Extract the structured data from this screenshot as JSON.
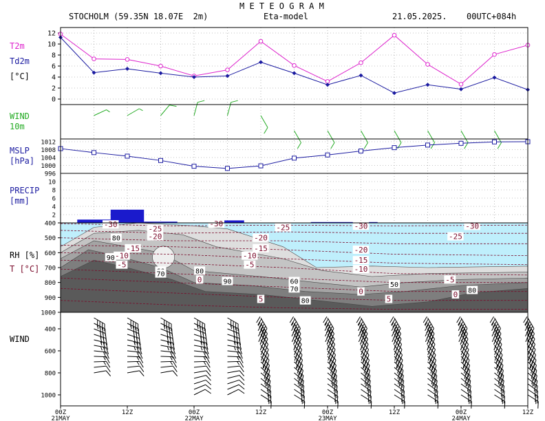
{
  "header": {
    "title": "M E T E O G R A M",
    "station": "STOCHOLM (59.35N 18.07E  2m)",
    "model": "Eta-model",
    "date": "21.05.2025.",
    "run": "00UTC+084h"
  },
  "panel_labels": {
    "t2m": "T2m",
    "td2m": "Td2m",
    "unit_c": "[°C]",
    "wind": "WIND",
    "wind_10m": "10m",
    "mslp": "MSLP",
    "mslp_unit": "[hPa]",
    "precip": "PRECIP",
    "precip_unit": "[mm]",
    "rh": "RH [%]",
    "t": "T [°C]",
    "wind_upper": "WIND"
  },
  "colors": {
    "t2m": "#dd22cc",
    "td2m": "#1a1aa0",
    "wind_sfc": "#22aa22",
    "mslp": "#1a1aa0",
    "precip": "#1a1acc",
    "rh_sky": "#bfeffc",
    "rh_contour_label": "#7a0a2a",
    "axis": "#000000"
  },
  "x_axis": {
    "tick_labels": [
      "00Z",
      "12Z",
      "00Z",
      "12Z",
      "00Z",
      "12Z",
      "00Z",
      "12Z"
    ],
    "day_labels": [
      "21MAY",
      "22MAY",
      "23MAY",
      "24MAY"
    ],
    "hours": [
      0,
      12,
      24,
      36,
      48,
      60,
      72,
      84
    ],
    "step_hours": 6,
    "range_hours": [
      0,
      84
    ]
  },
  "chart_data": [
    {
      "type": "line",
      "title": "T2m / Td2m",
      "ylabel": "[°C]",
      "yticks": [
        0,
        2,
        4,
        6,
        8,
        10,
        12
      ],
      "ylim": [
        -1,
        13
      ],
      "x": [
        0,
        6,
        12,
        18,
        24,
        30,
        36,
        42,
        48,
        54,
        60,
        66,
        72,
        78,
        84
      ],
      "series": [
        {
          "name": "T2m",
          "values": [
            11.8,
            7.3,
            7.2,
            6.0,
            4.2,
            5.3,
            10.5,
            6.1,
            3.2,
            6.6,
            11.6,
            6.3,
            2.7,
            8.1,
            9.8
          ]
        },
        {
          "name": "Td2m",
          "values": [
            11.2,
            4.8,
            5.5,
            4.7,
            4.0,
            4.2,
            6.7,
            4.7,
            2.6,
            4.3,
            1.1,
            2.6,
            1.8,
            3.9,
            1.7
          ]
        }
      ]
    },
    {
      "type": "wind_barbs",
      "title": "WIND 10m",
      "x": [
        6,
        12,
        18,
        24,
        30,
        36,
        42,
        48,
        54,
        60,
        66,
        72,
        78
      ],
      "direction_deg": [
        245,
        240,
        220,
        195,
        195,
        330,
        330,
        330,
        330,
        330,
        330,
        330,
        330
      ],
      "speed_kt": [
        5,
        5,
        10,
        10,
        10,
        10,
        10,
        10,
        10,
        10,
        10,
        10,
        10
      ]
    },
    {
      "type": "line",
      "title": "MSLP",
      "ylabel": "[hPa]",
      "yticks": [
        996,
        1000,
        1004,
        1008,
        1012
      ],
      "ylim": [
        996,
        1012
      ],
      "x": [
        0,
        6,
        12,
        18,
        24,
        30,
        36,
        42,
        48,
        54,
        60,
        66,
        72,
        78,
        84
      ],
      "series": [
        {
          "name": "MSLP",
          "values": [
            1008.5,
            1006.5,
            1004.7,
            1002.5,
            999.6,
            998.5,
            999.8,
            1003.7,
            1005.3,
            1007.3,
            1009.0,
            1010.3,
            1011.2,
            1011.9,
            1012.0
          ]
        }
      ]
    },
    {
      "type": "bar",
      "title": "PRECIP",
      "ylabel": "[mm]",
      "yticks": [
        2,
        4,
        6,
        8,
        10
      ],
      "ylim": [
        0,
        12
      ],
      "x_start": [
        3,
        9,
        15,
        27,
        45
      ],
      "x_end": [
        9,
        15,
        21,
        33,
        57
      ],
      "values": [
        0.8,
        3.2,
        0.3,
        0.6,
        0.2
      ]
    },
    {
      "type": "heatmap",
      "title": "RH / T cross-section",
      "ylabel": "pressure [hPa]",
      "yticks": [
        400,
        500,
        600,
        700,
        800,
        900,
        1000
      ],
      "ylim": [
        1000,
        400
      ],
      "rh_levels": [
        50,
        60,
        70,
        80,
        90
      ],
      "temperature_labels": [
        {
          "x": 9,
          "p": 410,
          "v": "-30"
        },
        {
          "x": 28,
          "p": 405,
          "v": "-30"
        },
        {
          "x": 54,
          "p": 420,
          "v": "-30"
        },
        {
          "x": 74,
          "p": 420,
          "v": "-30"
        },
        {
          "x": 40,
          "p": 430,
          "v": "-25"
        },
        {
          "x": 17,
          "p": 440,
          "v": "-25"
        },
        {
          "x": 71,
          "p": 490,
          "v": "-25"
        },
        {
          "x": 17,
          "p": 490,
          "v": "-20"
        },
        {
          "x": 36,
          "p": 500,
          "v": "-20"
        },
        {
          "x": 54,
          "p": 580,
          "v": "-20"
        },
        {
          "x": 13,
          "p": 570,
          "v": "-15"
        },
        {
          "x": 36,
          "p": 570,
          "v": "-15"
        },
        {
          "x": 54,
          "p": 650,
          "v": "-15"
        },
        {
          "x": 11,
          "p": 620,
          "v": "-10"
        },
        {
          "x": 34,
          "p": 620,
          "v": "-10"
        },
        {
          "x": 54,
          "p": 710,
          "v": "-10"
        },
        {
          "x": 11,
          "p": 680,
          "v": "-5"
        },
        {
          "x": 34,
          "p": 680,
          "v": "-5"
        },
        {
          "x": 70,
          "p": 780,
          "v": "-5"
        },
        {
          "x": 25,
          "p": 780,
          "v": "0"
        },
        {
          "x": 54,
          "p": 860,
          "v": "0"
        },
        {
          "x": 71,
          "p": 880,
          "v": "0"
        },
        {
          "x": 36,
          "p": 910,
          "v": "5"
        },
        {
          "x": 59,
          "p": 910,
          "v": "5"
        }
      ],
      "rh_labels": [
        {
          "x": 10,
          "p": 500,
          "v": "80"
        },
        {
          "x": 9,
          "p": 630,
          "v": "90"
        },
        {
          "x": 18,
          "p": 720,
          "v": "60"
        },
        {
          "x": 18,
          "p": 740,
          "v": "70"
        },
        {
          "x": 25,
          "p": 720,
          "v": "80"
        },
        {
          "x": 30,
          "p": 790,
          "v": "90"
        },
        {
          "x": 42,
          "p": 790,
          "v": "60"
        },
        {
          "x": 42,
          "p": 840,
          "v": "70"
        },
        {
          "x": 44,
          "p": 920,
          "v": "80"
        },
        {
          "x": 60,
          "p": 810,
          "v": "50"
        },
        {
          "x": 74,
          "p": 850,
          "v": "80"
        }
      ]
    },
    {
      "type": "wind_barbs",
      "title": "WIND profile",
      "yticks": [
        400,
        600,
        800,
        1000
      ],
      "ylim": [
        1100,
        250
      ],
      "x": [
        6,
        12,
        18,
        24,
        30,
        36,
        42,
        48,
        54,
        60,
        66,
        72,
        78,
        84
      ]
    }
  ]
}
